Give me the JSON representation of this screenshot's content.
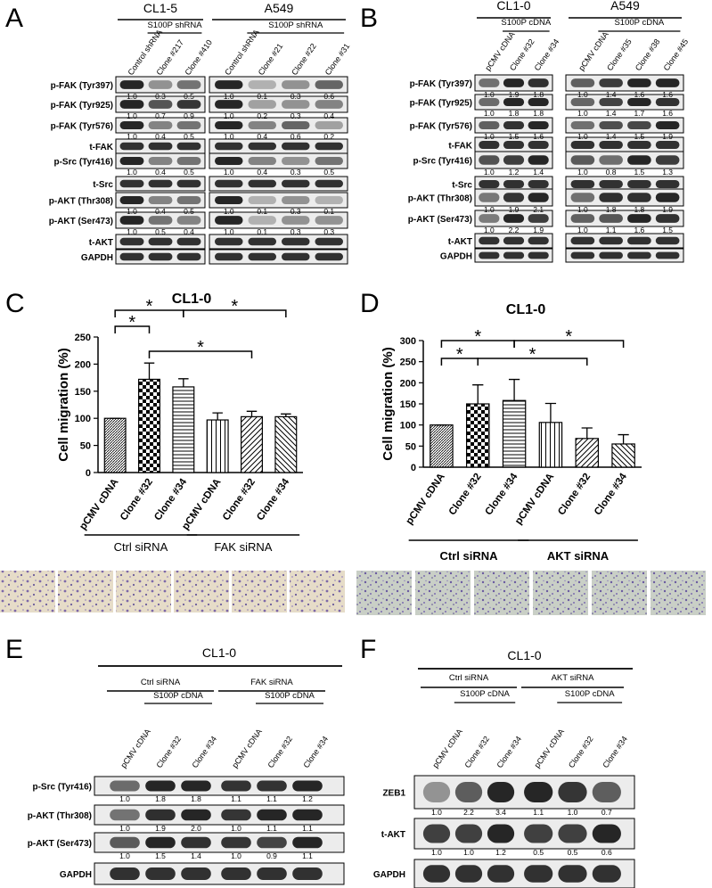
{
  "blots": {
    "panel_a": {
      "letter": "A",
      "groups": [
        {
          "title": "CL1-5",
          "subgroup": "S100P shRNA",
          "lanes": [
            "Control shRNA",
            "Clone #217",
            "Clone #410"
          ]
        },
        {
          "title": "A549",
          "subgroup": "S100P shRNA",
          "lanes": [
            "Control shRNA",
            "Clone #21",
            "Clone #22",
            "Clone #31"
          ]
        }
      ],
      "rows": [
        {
          "label": "p-FAK (Tyr397)",
          "values": [
            [
              "1.0",
              "0.3",
              "0.5"
            ],
            [
              "1.0",
              "0.1",
              "0.3",
              "0.6"
            ]
          ]
        },
        {
          "label": "p-FAK (Tyr925)",
          "values": [
            [
              "1.0",
              "0.7",
              "0.9"
            ],
            [
              "1.0",
              "0.2",
              "0.3",
              "0.4"
            ]
          ]
        },
        {
          "label": "p-FAK (Tyr576)",
          "values": [
            [
              "1.0",
              "0.4",
              "0.5"
            ],
            [
              "1.0",
              "0.4",
              "0.6",
              "0.2"
            ]
          ]
        },
        {
          "label": "t-FAK"
        },
        {
          "label": "p-Src (Tyr416)",
          "values": [
            [
              "1.0",
              "0.4",
              "0.5"
            ],
            [
              "1.0",
              "0.4",
              "0.3",
              "0.5"
            ]
          ]
        },
        {
          "label": "t-Src"
        },
        {
          "label": "p-AKT (Thr308)",
          "values": [
            [
              "1.0",
              "0.4",
              "0.5"
            ],
            [
              "1.0",
              "0.1",
              "0.3",
              "0.1"
            ]
          ]
        },
        {
          "label": "p-AKT (Ser473)",
          "values": [
            [
              "1.0",
              "0.5",
              "0.4"
            ],
            [
              "1.0",
              "0.1",
              "0.3",
              "0.3"
            ]
          ]
        },
        {
          "label": "t-AKT"
        },
        {
          "label": "GAPDH"
        }
      ]
    },
    "panel_b": {
      "letter": "B",
      "groups": [
        {
          "title": "CL1-0",
          "subgroup": "S100P cDNA",
          "lanes": [
            "pCMV cDNA",
            "Clone #32",
            "Clone #34"
          ]
        },
        {
          "title": "A549",
          "subgroup": "S100P cDNA",
          "lanes": [
            "pCMV cDNA",
            "Clone #35",
            "Clone #38",
            "Clone #45"
          ]
        }
      ],
      "rows": [
        {
          "label": "p-FAK (Tyr397)",
          "values": [
            [
              "1.0",
              "1.9",
              "1.8"
            ],
            [
              "1.0",
              "1.4",
              "1.6",
              "1.6"
            ]
          ]
        },
        {
          "label": "p-FAK (Tyr925)",
          "values": [
            [
              "1.0",
              "1.8",
              "1.8"
            ],
            [
              "1.0",
              "1.4",
              "1.7",
              "1.6"
            ]
          ]
        },
        {
          "label": "p-FAK (Tyr576)",
          "values": [
            [
              "1.0",
              "1.5",
              "1.6"
            ],
            [
              "1.0",
              "1.4",
              "1.5",
              "1.9"
            ]
          ]
        },
        {
          "label": "t-FAK"
        },
        {
          "label": "p-Src (Tyr416)",
          "values": [
            [
              "1.0",
              "1.2",
              "1.4"
            ],
            [
              "1.0",
              "0.8",
              "1.5",
              "1.3"
            ]
          ]
        },
        {
          "label": "t-Src"
        },
        {
          "label": "p-AKT (Thr308)",
          "values": [
            [
              "1.0",
              "1.9",
              "2.1"
            ],
            [
              "1.0",
              "1.8",
              "1.8",
              "1.9"
            ]
          ]
        },
        {
          "label": "p-AKT (Ser473)",
          "values": [
            [
              "1.0",
              "2.2",
              "1.9"
            ],
            [
              "1.0",
              "1.1",
              "1.6",
              "1.5"
            ]
          ]
        },
        {
          "label": "t-AKT"
        },
        {
          "label": "GAPDH"
        }
      ]
    },
    "panel_e": {
      "letter": "E",
      "title": "CL1-0",
      "groups": [
        {
          "title": "Ctrl siRNA",
          "subgroup": "S100P cDNA",
          "lanes": [
            "pCMV cDNA",
            "Clone #32",
            "Clone #34"
          ]
        },
        {
          "title": "FAK siRNA",
          "subgroup": "S100P cDNA",
          "lanes": [
            "pCMV cDNA",
            "Clone #32",
            "Clone #34"
          ]
        }
      ],
      "rows": [
        {
          "label": "p-Src (Tyr416)",
          "values": [
            [
              "1.0",
              "1.8",
              "1.8"
            ],
            [
              "1.1",
              "1.1",
              "1.2"
            ]
          ]
        },
        {
          "label": "p-AKT (Thr308)",
          "values": [
            [
              "1.0",
              "1.9",
              "2.0"
            ],
            [
              "1.0",
              "1.1",
              "1.1"
            ]
          ]
        },
        {
          "label": "p-AKT (Ser473)",
          "values": [
            [
              "1.0",
              "1.5",
              "1.4"
            ],
            [
              "1.0",
              "0.9",
              "1.1"
            ]
          ]
        },
        {
          "label": "GAPDH"
        }
      ]
    },
    "panel_f": {
      "letter": "F",
      "title": "CL1-0",
      "groups": [
        {
          "title": "Ctrl siRNA",
          "subgroup": "S100P cDNA",
          "lanes": [
            "pCMV cDNA",
            "Clone #32",
            "Clone #34"
          ]
        },
        {
          "title": "AKT siRNA",
          "subgroup": "S100P cDNA",
          "lanes": [
            "pCMV cDNA",
            "Clone #32",
            "Clone #34"
          ]
        }
      ],
      "rows": [
        {
          "label": "ZEB1",
          "values": [
            [
              "1.0",
              "2.2",
              "3.4"
            ],
            [
              "1.1",
              "1.0",
              "0.7"
            ]
          ]
        },
        {
          "label": "t-AKT",
          "values": [
            [
              "1.0",
              "1.0",
              "1.2"
            ],
            [
              "0.5",
              "0.5",
              "0.6"
            ]
          ]
        },
        {
          "label": "GAPDH"
        }
      ]
    }
  },
  "chart_data": [
    {
      "type": "bar",
      "panel": "C",
      "title": "CL1-0",
      "ylabel": "Cell migration (%)",
      "categories": [
        "pCMV cDNA",
        "Clone #32",
        "Clone #34",
        "pCMV cDNA",
        "Clone #32",
        "Clone #34"
      ],
      "values": [
        100,
        172,
        158,
        97,
        103,
        103
      ],
      "errors": [
        0,
        30,
        15,
        13,
        10,
        5
      ],
      "groups": [
        "Ctrl siRNA",
        "FAK siRNA"
      ],
      "annotations": [
        "*",
        "*",
        "*",
        "*"
      ],
      "ylim": [
        0,
        250
      ],
      "yticks": [
        0,
        50,
        100,
        150,
        200,
        250
      ],
      "color": "#000000"
    },
    {
      "type": "bar",
      "panel": "D",
      "title": "CL1-0",
      "ylabel": "Cell migration (%)",
      "categories": [
        "pCMV cDNA",
        "Clone #32",
        "Clone #34",
        "pCMV cDNA",
        "Clone #32",
        "Clone #34"
      ],
      "values": [
        100,
        150,
        158,
        106,
        68,
        55
      ],
      "errors": [
        0,
        45,
        50,
        45,
        25,
        22
      ],
      "groups": [
        "Ctrl siRNA",
        "AKT siRNA"
      ],
      "annotations": [
        "*",
        "*",
        "*",
        "*"
      ],
      "ylim": [
        0,
        300
      ],
      "yticks": [
        0,
        50,
        100,
        150,
        200,
        250,
        300
      ],
      "color": "#000000"
    }
  ]
}
